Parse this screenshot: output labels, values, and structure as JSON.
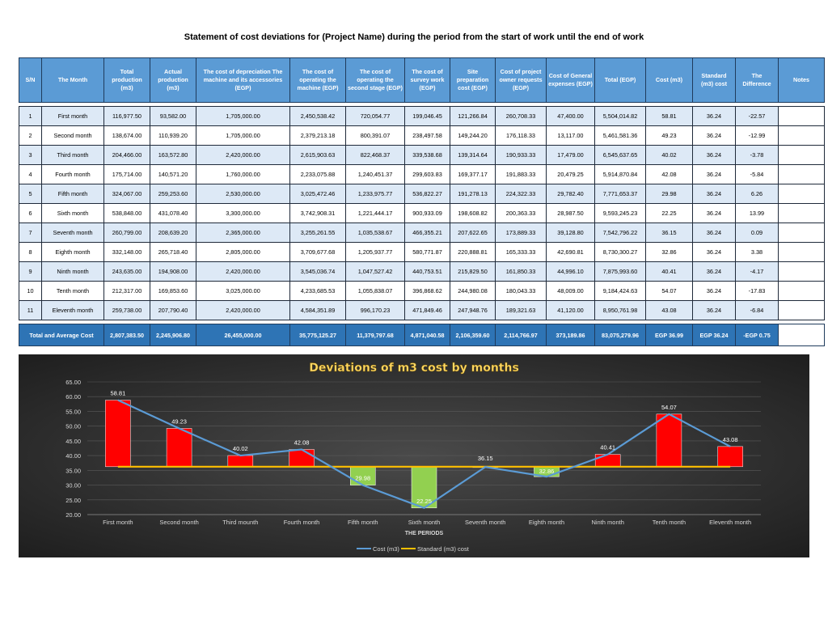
{
  "title": "Statement of cost deviations for (Project Name)  during the period from the start of work until the end of work",
  "table": {
    "headers": [
      "S/N",
      "The Month",
      "Total production (m3)",
      "Actual production (m3)",
      "The cost of depreciation The machine and its accessories (EGP)",
      "The cost of operating the machine (EGP)",
      "The cost of operating the second stage (EGP)",
      "The cost of survey work (EGP)",
      "Site preparation cost (EGP)",
      "Cost of project owner requests (EGP)",
      "Cost of General expenses  (EGP)",
      "Total (EGP)",
      "Cost (m3)",
      "Standard (m3) cost",
      "The Difference",
      "Notes"
    ],
    "rows": [
      [
        "1",
        "First month",
        "116,977.50",
        "93,582.00",
        "1,705,000.00",
        "2,450,538.42",
        "720,054.77",
        "199,046.45",
        "121,266.84",
        "260,708.33",
        "47,400.00",
        "5,504,014.82",
        "58.81",
        "36.24",
        "-22.57",
        ""
      ],
      [
        "2",
        "Second month",
        "138,674.00",
        "110,939.20",
        "1,705,000.00",
        "2,379,213.18",
        "800,391.07",
        "238,497.58",
        "149,244.20",
        "176,118.33",
        "13,117.00",
        "5,461,581.36",
        "49.23",
        "36.24",
        "-12.99",
        ""
      ],
      [
        "3",
        "Third month",
        "204,466.00",
        "163,572.80",
        "2,420,000.00",
        "2,615,903.63",
        "822,468.37",
        "339,538.68",
        "139,314.64",
        "190,933.33",
        "17,479.00",
        "6,545,637.65",
        "40.02",
        "36.24",
        "-3.78",
        ""
      ],
      [
        "4",
        "Fourth month",
        "175,714.00",
        "140,571.20",
        "1,760,000.00",
        "2,233,075.88",
        "1,240,451.37",
        "299,603.83",
        "169,377.17",
        "191,883.33",
        "20,479.25",
        "5,914,870.84",
        "42.08",
        "36.24",
        "-5.84",
        ""
      ],
      [
        "5",
        "Fifth month",
        "324,067.00",
        "259,253.60",
        "2,530,000.00",
        "3,025,472.46",
        "1,233,975.77",
        "536,822.27",
        "191,278.13",
        "224,322.33",
        "29,782.40",
        "7,771,653.37",
        "29.98",
        "36.24",
        "6.26",
        ""
      ],
      [
        "6",
        "Sixth month",
        "538,848.00",
        "431,078.40",
        "3,300,000.00",
        "3,742,908.31",
        "1,221,444.17",
        "900,933.09",
        "198,608.82",
        "200,363.33",
        "28,987.50",
        "9,593,245.23",
        "22.25",
        "36.24",
        "13.99",
        ""
      ],
      [
        "7",
        "Seventh month",
        "260,799.00",
        "208,639.20",
        "2,365,000.00",
        "3,255,261.55",
        "1,035,538.67",
        "466,355.21",
        "207,622.65",
        "173,889.33",
        "39,128.80",
        "7,542,796.22",
        "36.15",
        "36.24",
        "0.09",
        ""
      ],
      [
        "8",
        "Eighth month",
        "332,148.00",
        "265,718.40",
        "2,805,000.00",
        "3,709,677.68",
        "1,205,937.77",
        "580,771.87",
        "220,888.81",
        "165,333.33",
        "42,690.81",
        "8,730,300.27",
        "32.86",
        "36.24",
        "3.38",
        ""
      ],
      [
        "9",
        "Ninth month",
        "243,635.00",
        "194,908.00",
        "2,420,000.00",
        "3,545,036.74",
        "1,047,527.42",
        "440,753.51",
        "215,829.50",
        "161,850.33",
        "44,996.10",
        "7,875,993.60",
        "40.41",
        "36.24",
        "-4.17",
        ""
      ],
      [
        "10",
        "Tenth month",
        "212,317.00",
        "169,853.60",
        "3,025,000.00",
        "4,233,685.53",
        "1,055,838.07",
        "396,868.62",
        "244,980.08",
        "180,043.33",
        "48,009.00",
        "9,184,424.63",
        "54.07",
        "36.24",
        "-17.83",
        ""
      ],
      [
        "11",
        "Eleventh month",
        "259,738.00",
        "207,790.40",
        "2,420,000.00",
        "4,584,351.89",
        "996,170.23",
        "471,849.46",
        "247,948.76",
        "189,321.63",
        "41,120.00",
        "8,950,761.98",
        "43.08",
        "36.24",
        "-6.84",
        ""
      ]
    ],
    "total": [
      "Total and Average Cost",
      "2,807,383.50",
      "2,245,906.80",
      "26,455,000.00",
      "35,775,125.27",
      "11,379,797.68",
      "4,871,040.58",
      "2,106,359.60",
      "2,114,766.97",
      "373,189.86",
      "83,075,279.96",
      "EGP 36.99",
      "EGP 36.24",
      "-EGP 0.75",
      ""
    ]
  },
  "colors": {
    "header_bg": "#5b9bd5",
    "total_bg": "#2e74b5",
    "row_alt": "#dde9f6",
    "cost_line": "#5b9bd5",
    "standard_line": "#ffc000",
    "above_bar": "#ff0000",
    "below_bar": "#92d050",
    "chart_title": "#ffd966"
  },
  "chart_data": {
    "type": "line",
    "title": "Deviations of m3 cost by months",
    "xlabel": "THE PERIODS",
    "ylabel": "",
    "categories": [
      "First month",
      "Second month",
      "Third mounth",
      "Fourth month",
      "Fifth month",
      "Sixth month",
      "Seventh month",
      "Eighth month",
      "Ninth month",
      "Tenth month",
      "Eleventh month"
    ],
    "series": [
      {
        "name": "Cost (m3)",
        "values": [
          58.81,
          49.23,
          40.02,
          42.08,
          29.98,
          22.25,
          36.15,
          32.86,
          40.41,
          54.07,
          43.08
        ]
      },
      {
        "name": "Standard (m3) cost",
        "values": [
          36.24,
          36.24,
          36.24,
          36.24,
          36.24,
          36.24,
          36.24,
          36.24,
          36.24,
          36.24,
          36.24
        ]
      }
    ],
    "data_labels": [
      "58.81",
      "49.23",
      "40.02",
      "42.08",
      "29.98",
      "22.25",
      "36.15",
      "32.86",
      "40.41",
      "54.07",
      "43.08"
    ],
    "yticks": [
      "20.00",
      "25.00",
      "30.00",
      "35.00",
      "40.00",
      "45.00",
      "50.00",
      "55.00",
      "60.00",
      "65.00"
    ],
    "ylim": [
      20,
      65
    ],
    "grid": true,
    "legend_position": "bottom"
  }
}
